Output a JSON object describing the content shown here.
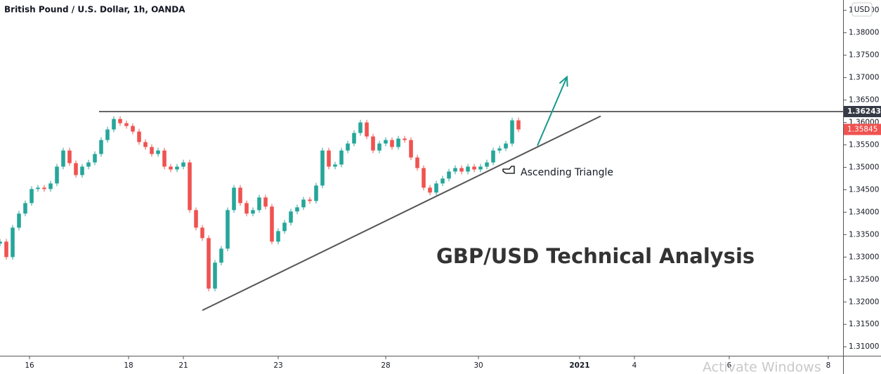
{
  "chart_data": {
    "type": "candlestick",
    "title": "British Pound / U.S. Dollar, 1h, OANDA",
    "currency": "USD",
    "up_color": "#26a69a",
    "down_color": "#ef5350",
    "x": [
      -14,
      -11,
      -8,
      -5,
      -2,
      1,
      4,
      7,
      10,
      13,
      16,
      19,
      22,
      25,
      28,
      31,
      34,
      37,
      40,
      43,
      46,
      49,
      52,
      55,
      58,
      61,
      64,
      67,
      70,
      73,
      76,
      79,
      82,
      85,
      88,
      91,
      94,
      97,
      100,
      103,
      106,
      109,
      112,
      115,
      118,
      121,
      124,
      127,
      130,
      133,
      136,
      139,
      142,
      145,
      148,
      151,
      154,
      157,
      160,
      163,
      166,
      169,
      172,
      175,
      178,
      181,
      184,
      187,
      190,
      193,
      196,
      199,
      202,
      205,
      208,
      211,
      214,
      217,
      220,
      223,
      226,
      229,
      232
    ],
    "open": [
      1.333,
      1.33344,
      1.33,
      1.33656,
      1.33969,
      1.34203,
      1.34516,
      1.34547,
      1.34516,
      1.34641,
      1.35016,
      1.35375,
      1.35094,
      1.34828,
      1.35016,
      1.35109,
      1.35297,
      1.35609,
      1.35844,
      1.36078,
      1.35984,
      1.35922,
      1.35797,
      1.35563,
      1.35453,
      1.35297,
      1.35375,
      1.35016,
      1.34953,
      1.35016,
      1.35109,
      1.34047,
      1.33656,
      1.33422,
      1.32297,
      1.32875,
      1.33188,
      1.34047,
      1.34547,
      1.34203,
      1.33969,
      1.34047,
      1.34328,
      1.34125,
      1.33344,
      1.33578,
      1.33766,
      1.34016,
      1.34109,
      1.34281,
      1.3425,
      1.34594,
      1.35375,
      1.35016,
      1.35063,
      1.35375,
      1.35531,
      1.35766,
      1.36,
      1.35688,
      1.35375,
      1.35531,
      1.35609,
      1.35453,
      1.35641,
      1.35609,
      1.35219,
      1.34984,
      1.34547,
      1.34438,
      1.34641,
      1.3475,
      1.34906,
      1.34984,
      1.34906,
      1.35016,
      1.34953,
      1.35016,
      1.35109,
      1.35375,
      1.35422,
      1.35531,
      1.36047
    ],
    "high": [
      1.33404,
      1.33404,
      1.33716,
      1.34029,
      1.34263,
      1.34576,
      1.34607,
      1.34607,
      1.34701,
      1.35076,
      1.35435,
      1.35435,
      1.35154,
      1.35076,
      1.35169,
      1.35357,
      1.35669,
      1.35904,
      1.36138,
      1.36138,
      1.36044,
      1.35982,
      1.35857,
      1.35623,
      1.35513,
      1.35435,
      1.35435,
      1.35076,
      1.35076,
      1.35169,
      1.35169,
      1.34107,
      1.33716,
      1.33482,
      1.32935,
      1.33248,
      1.34107,
      1.34607,
      1.34607,
      1.34263,
      1.34107,
      1.34388,
      1.34388,
      1.34185,
      1.33638,
      1.33826,
      1.34076,
      1.34169,
      1.34341,
      1.34341,
      1.34654,
      1.35435,
      1.35435,
      1.35123,
      1.35435,
      1.35591,
      1.35826,
      1.3606,
      1.3606,
      1.35748,
      1.35591,
      1.35669,
      1.35669,
      1.35701,
      1.35701,
      1.35669,
      1.35279,
      1.35044,
      1.34607,
      1.34701,
      1.3481,
      1.34966,
      1.35044,
      1.35044,
      1.35076,
      1.35076,
      1.35076,
      1.35169,
      1.35435,
      1.35482,
      1.35591,
      1.36107,
      1.36107
    ],
    "low": [
      1.3324,
      1.3294,
      1.3294,
      1.33596,
      1.33909,
      1.34143,
      1.34456,
      1.34456,
      1.34456,
      1.34581,
      1.34956,
      1.35034,
      1.34768,
      1.34768,
      1.34956,
      1.35049,
      1.35237,
      1.35549,
      1.35784,
      1.35924,
      1.35862,
      1.35737,
      1.35503,
      1.35393,
      1.35237,
      1.35237,
      1.34956,
      1.34893,
      1.34893,
      1.34956,
      1.33987,
      1.33596,
      1.33362,
      1.32237,
      1.32237,
      1.32815,
      1.33128,
      1.33987,
      1.34143,
      1.33909,
      1.33909,
      1.33987,
      1.34065,
      1.33284,
      1.33284,
      1.33518,
      1.33706,
      1.33956,
      1.34049,
      1.3419,
      1.3419,
      1.34534,
      1.34956,
      1.34956,
      1.35003,
      1.35315,
      1.35471,
      1.35706,
      1.35628,
      1.35315,
      1.35315,
      1.35471,
      1.35393,
      1.35393,
      1.35549,
      1.35159,
      1.34924,
      1.34487,
      1.34378,
      1.34378,
      1.34581,
      1.3469,
      1.34846,
      1.34846,
      1.34846,
      1.34893,
      1.34893,
      1.34956,
      1.35049,
      1.35315,
      1.35362,
      1.35471,
      1.35785
    ],
    "close": [
      1.33344,
      1.33,
      1.33656,
      1.33969,
      1.34203,
      1.34516,
      1.34547,
      1.34516,
      1.34641,
      1.35016,
      1.35375,
      1.35094,
      1.34828,
      1.35016,
      1.35109,
      1.35297,
      1.35609,
      1.35844,
      1.36078,
      1.35984,
      1.35922,
      1.35797,
      1.35563,
      1.35453,
      1.35297,
      1.35375,
      1.35016,
      1.34953,
      1.35016,
      1.35109,
      1.34047,
      1.33656,
      1.33422,
      1.32297,
      1.32875,
      1.33188,
      1.34047,
      1.34547,
      1.34203,
      1.33969,
      1.34047,
      1.34328,
      1.34125,
      1.33344,
      1.33578,
      1.33766,
      1.34016,
      1.34109,
      1.34281,
      1.3425,
      1.34594,
      1.35375,
      1.35016,
      1.35063,
      1.35375,
      1.35531,
      1.35766,
      1.36,
      1.35688,
      1.35375,
      1.35531,
      1.35609,
      1.35453,
      1.35641,
      1.35609,
      1.35219,
      1.34984,
      1.34547,
      1.34438,
      1.34641,
      1.3475,
      1.34906,
      1.34984,
      1.34906,
      1.35016,
      1.34953,
      1.35016,
      1.35109,
      1.35375,
      1.35422,
      1.35531,
      1.36047,
      1.35845
    ],
    "xlim": [
      -14,
      386
    ],
    "xticks": [
      {
        "value": 0,
        "label": "16"
      },
      {
        "value": 47,
        "label": "18"
      },
      {
        "value": 73,
        "label": "21"
      },
      {
        "value": 118,
        "label": "23"
      },
      {
        "value": 169,
        "label": "28"
      },
      {
        "value": 213,
        "label": "30"
      },
      {
        "value": 261,
        "label": "2021"
      },
      {
        "value": 287,
        "label": "4"
      },
      {
        "value": 332,
        "label": "6"
      },
      {
        "value": 379,
        "label": "8"
      }
    ],
    "ylim": [
      1.308,
      1.3873
    ],
    "yticks": [
      {
        "value": 1.385,
        "label": "1.38500"
      },
      {
        "value": 1.38,
        "label": "1.38000"
      },
      {
        "value": 1.375,
        "label": "1.37500"
      },
      {
        "value": 1.37,
        "label": "1.37000"
      },
      {
        "value": 1.365,
        "label": "1.36500"
      },
      {
        "value": 1.36,
        "label": "1.36000"
      },
      {
        "value": 1.355,
        "label": "1.35500"
      },
      {
        "value": 1.35,
        "label": "1.35000"
      },
      {
        "value": 1.345,
        "label": "1.34500"
      },
      {
        "value": 1.34,
        "label": "1.34000"
      },
      {
        "value": 1.335,
        "label": "1.33500"
      },
      {
        "value": 1.33,
        "label": "1.33000"
      },
      {
        "value": 1.325,
        "label": "1.32500"
      },
      {
        "value": 1.32,
        "label": "1.32000"
      },
      {
        "value": 1.315,
        "label": "1.31500"
      },
      {
        "value": 1.31,
        "label": "1.31000"
      }
    ],
    "resistance": 1.36243,
    "resistance_start": 33,
    "last_price": 1.35845,
    "trendline": {
      "x": [
        82,
        271
      ],
      "y": [
        1.31813,
        1.36141
      ]
    },
    "arrow": {
      "x": [
        241,
        255
      ],
      "y": [
        1.35484,
        1.37016
      ]
    },
    "annotations": [
      "Ascending Triangle",
      "GBP/USD Technical Analysis"
    ]
  },
  "watermark": "Activate Windows"
}
